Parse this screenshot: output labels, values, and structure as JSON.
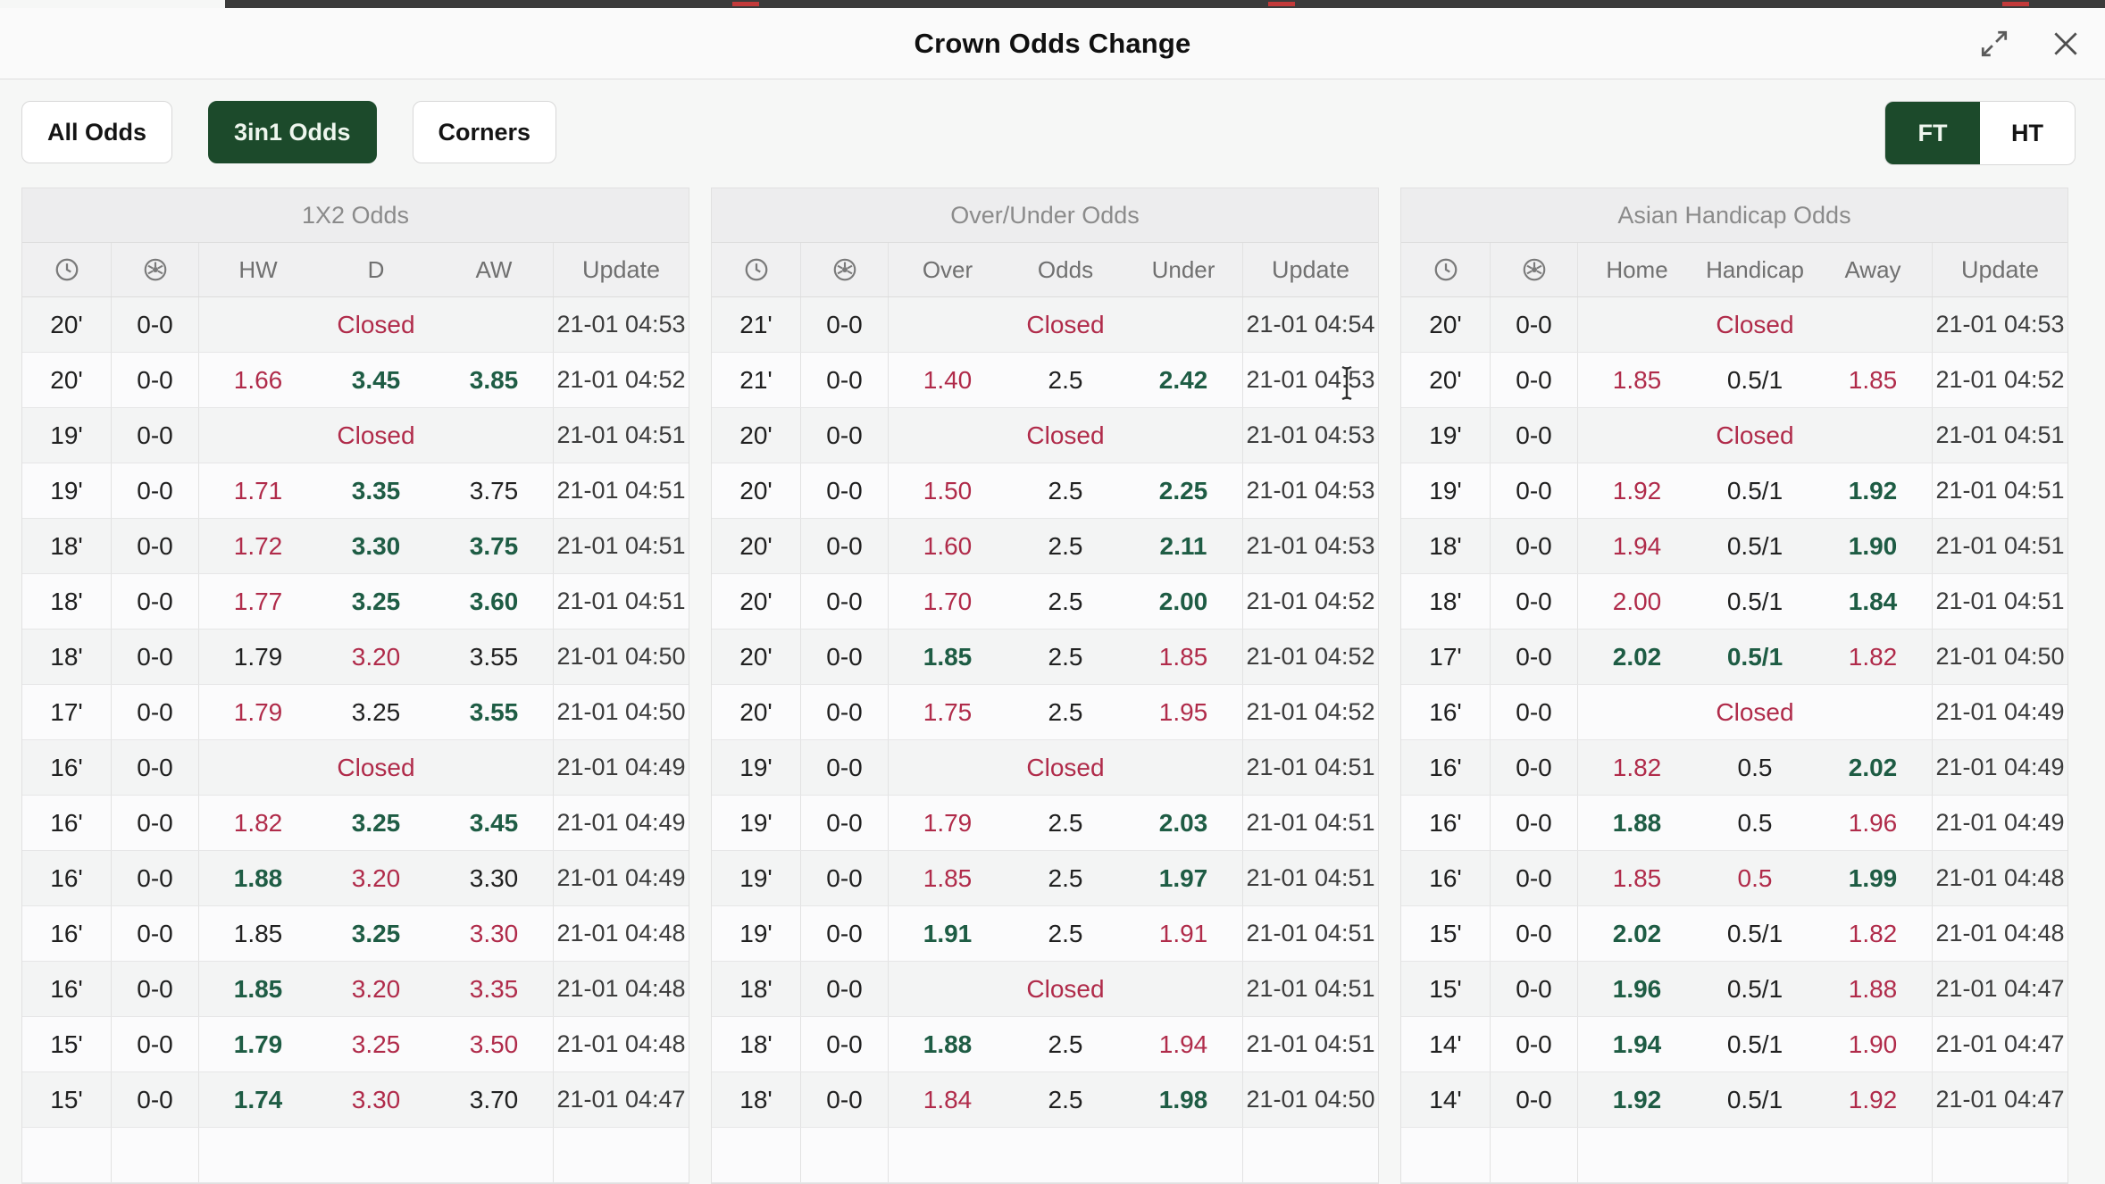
{
  "modal": {
    "title": "Crown Odds Change"
  },
  "window_icons": {
    "expand": "expand-icon",
    "close": "close-icon"
  },
  "toolbar": {
    "odds_tabs": [
      {
        "label": "All Odds",
        "active": false
      },
      {
        "label": "3in1 Odds",
        "active": true
      },
      {
        "label": "Corners",
        "active": false
      }
    ],
    "period_tabs": [
      {
        "label": "FT",
        "active": true
      },
      {
        "label": "HT",
        "active": false
      }
    ]
  },
  "colors": {
    "btn_green": "#1c4a2b",
    "green": "#1e5c44",
    "red": "#b02b4a"
  },
  "labels": {
    "closed": "Closed",
    "update": "Update",
    "time_icon": "clock-icon",
    "score_icon": "ball-icon"
  },
  "tables": [
    {
      "title": "1X2 Odds",
      "odds_columns": [
        "HW",
        "D",
        "AW"
      ],
      "rows": [
        {
          "t": "20'",
          "s": "0-0",
          "closed": true,
          "u": "21-01 04:53"
        },
        {
          "t": "20'",
          "s": "0-0",
          "o": [
            [
              "1.66",
              "d"
            ],
            [
              "3.45",
              "u"
            ],
            [
              "3.85",
              "u"
            ]
          ],
          "u": "21-01 04:52"
        },
        {
          "t": "19'",
          "s": "0-0",
          "closed": true,
          "u": "21-01 04:51"
        },
        {
          "t": "19'",
          "s": "0-0",
          "o": [
            [
              "1.71",
              "d"
            ],
            [
              "3.35",
              "u"
            ],
            [
              "3.75",
              "n"
            ]
          ],
          "u": "21-01 04:51"
        },
        {
          "t": "18'",
          "s": "0-0",
          "o": [
            [
              "1.72",
              "d"
            ],
            [
              "3.30",
              "u"
            ],
            [
              "3.75",
              "u"
            ]
          ],
          "u": "21-01 04:51"
        },
        {
          "t": "18'",
          "s": "0-0",
          "o": [
            [
              "1.77",
              "d"
            ],
            [
              "3.25",
              "u"
            ],
            [
              "3.60",
              "u"
            ]
          ],
          "u": "21-01 04:51"
        },
        {
          "t": "18'",
          "s": "0-0",
          "o": [
            [
              "1.79",
              "n"
            ],
            [
              "3.20",
              "d"
            ],
            [
              "3.55",
              "n"
            ]
          ],
          "u": "21-01 04:50"
        },
        {
          "t": "17'",
          "s": "0-0",
          "o": [
            [
              "1.79",
              "d"
            ],
            [
              "3.25",
              "n"
            ],
            [
              "3.55",
              "u"
            ]
          ],
          "u": "21-01 04:50"
        },
        {
          "t": "16'",
          "s": "0-0",
          "closed": true,
          "u": "21-01 04:49"
        },
        {
          "t": "16'",
          "s": "0-0",
          "o": [
            [
              "1.82",
              "d"
            ],
            [
              "3.25",
              "u"
            ],
            [
              "3.45",
              "u"
            ]
          ],
          "u": "21-01 04:49"
        },
        {
          "t": "16'",
          "s": "0-0",
          "o": [
            [
              "1.88",
              "u"
            ],
            [
              "3.20",
              "d"
            ],
            [
              "3.30",
              "n"
            ]
          ],
          "u": "21-01 04:49"
        },
        {
          "t": "16'",
          "s": "0-0",
          "o": [
            [
              "1.85",
              "n"
            ],
            [
              "3.25",
              "u"
            ],
            [
              "3.30",
              "d"
            ]
          ],
          "u": "21-01 04:48"
        },
        {
          "t": "16'",
          "s": "0-0",
          "o": [
            [
              "1.85",
              "u"
            ],
            [
              "3.20",
              "d"
            ],
            [
              "3.35",
              "d"
            ]
          ],
          "u": "21-01 04:48"
        },
        {
          "t": "15'",
          "s": "0-0",
          "o": [
            [
              "1.79",
              "u"
            ],
            [
              "3.25",
              "d"
            ],
            [
              "3.50",
              "d"
            ]
          ],
          "u": "21-01 04:48"
        },
        {
          "t": "15'",
          "s": "0-0",
          "o": [
            [
              "1.74",
              "u"
            ],
            [
              "3.30",
              "d"
            ],
            [
              "3.70",
              "n"
            ]
          ],
          "u": "21-01 04:47"
        }
      ]
    },
    {
      "title": "Over/Under Odds",
      "odds_columns": [
        "Over",
        "Odds",
        "Under"
      ],
      "rows": [
        {
          "t": "21'",
          "s": "0-0",
          "closed": true,
          "u": "21-01 04:54"
        },
        {
          "t": "21'",
          "s": "0-0",
          "o": [
            [
              "1.40",
              "d"
            ],
            [
              "2.5",
              "n"
            ],
            [
              "2.42",
              "u"
            ]
          ],
          "u": "21-01 04:53"
        },
        {
          "t": "20'",
          "s": "0-0",
          "closed": true,
          "u": "21-01 04:53"
        },
        {
          "t": "20'",
          "s": "0-0",
          "o": [
            [
              "1.50",
              "d"
            ],
            [
              "2.5",
              "n"
            ],
            [
              "2.25",
              "u"
            ]
          ],
          "u": "21-01 04:53"
        },
        {
          "t": "20'",
          "s": "0-0",
          "o": [
            [
              "1.60",
              "d"
            ],
            [
              "2.5",
              "n"
            ],
            [
              "2.11",
              "u"
            ]
          ],
          "u": "21-01 04:53"
        },
        {
          "t": "20'",
          "s": "0-0",
          "o": [
            [
              "1.70",
              "d"
            ],
            [
              "2.5",
              "n"
            ],
            [
              "2.00",
              "u"
            ]
          ],
          "u": "21-01 04:52"
        },
        {
          "t": "20'",
          "s": "0-0",
          "o": [
            [
              "1.85",
              "u"
            ],
            [
              "2.5",
              "n"
            ],
            [
              "1.85",
              "d"
            ]
          ],
          "u": "21-01 04:52"
        },
        {
          "t": "20'",
          "s": "0-0",
          "o": [
            [
              "1.75",
              "d"
            ],
            [
              "2.5",
              "n"
            ],
            [
              "1.95",
              "d"
            ]
          ],
          "u": "21-01 04:52"
        },
        {
          "t": "19'",
          "s": "0-0",
          "closed": true,
          "u": "21-01 04:51"
        },
        {
          "t": "19'",
          "s": "0-0",
          "o": [
            [
              "1.79",
              "d"
            ],
            [
              "2.5",
              "n"
            ],
            [
              "2.03",
              "u"
            ]
          ],
          "u": "21-01 04:51"
        },
        {
          "t": "19'",
          "s": "0-0",
          "o": [
            [
              "1.85",
              "d"
            ],
            [
              "2.5",
              "n"
            ],
            [
              "1.97",
              "u"
            ]
          ],
          "u": "21-01 04:51"
        },
        {
          "t": "19'",
          "s": "0-0",
          "o": [
            [
              "1.91",
              "u"
            ],
            [
              "2.5",
              "n"
            ],
            [
              "1.91",
              "d"
            ]
          ],
          "u": "21-01 04:51"
        },
        {
          "t": "18'",
          "s": "0-0",
          "closed": true,
          "u": "21-01 04:51"
        },
        {
          "t": "18'",
          "s": "0-0",
          "o": [
            [
              "1.88",
              "u"
            ],
            [
              "2.5",
              "n"
            ],
            [
              "1.94",
              "d"
            ]
          ],
          "u": "21-01 04:51"
        },
        {
          "t": "18'",
          "s": "0-0",
          "o": [
            [
              "1.84",
              "d"
            ],
            [
              "2.5",
              "n"
            ],
            [
              "1.98",
              "u"
            ]
          ],
          "u": "21-01 04:50"
        }
      ]
    },
    {
      "title": "Asian Handicap Odds",
      "odds_columns": [
        "Home",
        "Handicap",
        "Away"
      ],
      "rows": [
        {
          "t": "20'",
          "s": "0-0",
          "closed": true,
          "u": "21-01 04:53"
        },
        {
          "t": "20'",
          "s": "0-0",
          "o": [
            [
              "1.85",
              "d"
            ],
            [
              "0.5/1",
              "n"
            ],
            [
              "1.85",
              "d"
            ]
          ],
          "u": "21-01 04:52"
        },
        {
          "t": "19'",
          "s": "0-0",
          "closed": true,
          "u": "21-01 04:51"
        },
        {
          "t": "19'",
          "s": "0-0",
          "o": [
            [
              "1.92",
              "d"
            ],
            [
              "0.5/1",
              "n"
            ],
            [
              "1.92",
              "u"
            ]
          ],
          "u": "21-01 04:51"
        },
        {
          "t": "18'",
          "s": "0-0",
          "o": [
            [
              "1.94",
              "d"
            ],
            [
              "0.5/1",
              "n"
            ],
            [
              "1.90",
              "u"
            ]
          ],
          "u": "21-01 04:51"
        },
        {
          "t": "18'",
          "s": "0-0",
          "o": [
            [
              "2.00",
              "d"
            ],
            [
              "0.5/1",
              "n"
            ],
            [
              "1.84",
              "u"
            ]
          ],
          "u": "21-01 04:51"
        },
        {
          "t": "17'",
          "s": "0-0",
          "o": [
            [
              "2.02",
              "u"
            ],
            [
              "0.5/1",
              "u"
            ],
            [
              "1.82",
              "d"
            ]
          ],
          "u": "21-01 04:50"
        },
        {
          "t": "16'",
          "s": "0-0",
          "closed": true,
          "u": "21-01 04:49"
        },
        {
          "t": "16'",
          "s": "0-0",
          "o": [
            [
              "1.82",
              "d"
            ],
            [
              "0.5",
              "n"
            ],
            [
              "2.02",
              "u"
            ]
          ],
          "u": "21-01 04:49"
        },
        {
          "t": "16'",
          "s": "0-0",
          "o": [
            [
              "1.88",
              "u"
            ],
            [
              "0.5",
              "n"
            ],
            [
              "1.96",
              "d"
            ]
          ],
          "u": "21-01 04:49"
        },
        {
          "t": "16'",
          "s": "0-0",
          "o": [
            [
              "1.85",
              "d"
            ],
            [
              "0.5",
              "d"
            ],
            [
              "1.99",
              "u"
            ]
          ],
          "u": "21-01 04:48"
        },
        {
          "t": "15'",
          "s": "0-0",
          "o": [
            [
              "2.02",
              "u"
            ],
            [
              "0.5/1",
              "n"
            ],
            [
              "1.82",
              "d"
            ]
          ],
          "u": "21-01 04:48"
        },
        {
          "t": "15'",
          "s": "0-0",
          "o": [
            [
              "1.96",
              "u"
            ],
            [
              "0.5/1",
              "n"
            ],
            [
              "1.88",
              "d"
            ]
          ],
          "u": "21-01 04:47"
        },
        {
          "t": "14'",
          "s": "0-0",
          "o": [
            [
              "1.94",
              "u"
            ],
            [
              "0.5/1",
              "n"
            ],
            [
              "1.90",
              "d"
            ]
          ],
          "u": "21-01 04:47"
        },
        {
          "t": "14'",
          "s": "0-0",
          "o": [
            [
              "1.92",
              "u"
            ],
            [
              "0.5/1",
              "n"
            ],
            [
              "1.92",
              "d"
            ]
          ],
          "u": "21-01 04:47"
        }
      ]
    }
  ]
}
